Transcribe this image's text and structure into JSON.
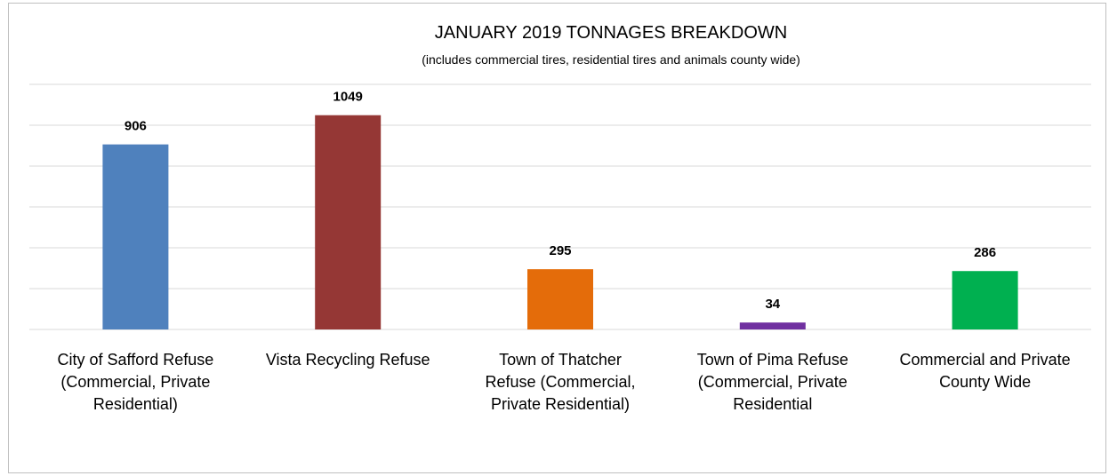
{
  "chart_data": {
    "type": "bar",
    "title": "JANUARY 2019 TONNAGES BREAKDOWN",
    "subtitle": "(includes commercial tires, residential tires and animals county wide)",
    "xlabel": "",
    "ylabel": "",
    "ylim": [
      0,
      1200
    ],
    "grid": true,
    "legend": "none",
    "categories": [
      [
        "City of Safford Refuse",
        "(Commercial, Private",
        "Residential)"
      ],
      [
        "Vista Recycling Refuse"
      ],
      [
        "Town of Thatcher",
        "Refuse (Commercial,",
        "Private Residential)"
      ],
      [
        "Town of Pima Refuse",
        "(Commercial, Private",
        "Residential"
      ],
      [
        "Commercial and Private",
        "County Wide"
      ]
    ],
    "values": [
      906,
      1049,
      295,
      34,
      286
    ],
    "colors": [
      "#4f81bd",
      "#953735",
      "#e46c0a",
      "#7030a0",
      "#00b050"
    ]
  }
}
